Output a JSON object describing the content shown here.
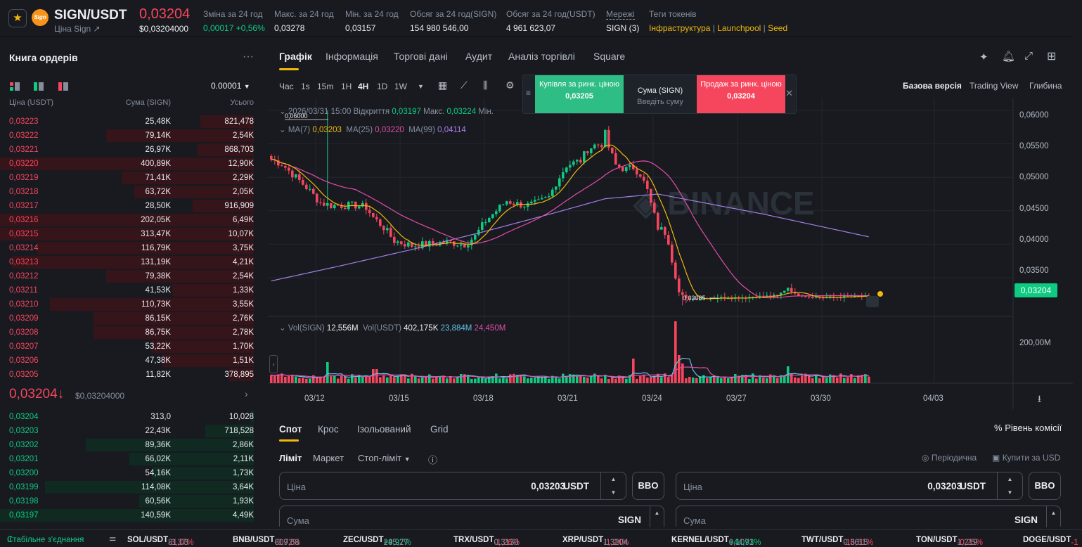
{
  "header": {
    "pair": "SIGN/USDT",
    "coin_badge": "Sign",
    "sub_link": "Ціна Sign ↗",
    "price": "0,03204",
    "price_usd": "$0,03204000",
    "stats": [
      {
        "label": "Зміна за 24 год",
        "value": "0,00017 +0,56%",
        "color": "green"
      },
      {
        "label": "Макс. за 24 год",
        "value": "0,03278",
        "color": ""
      },
      {
        "label": "Мін. за 24 год",
        "value": "0,03157",
        "color": ""
      },
      {
        "label": "Обсяг за 24 год(SIGN)",
        "value": "154 980 546,00",
        "color": ""
      },
      {
        "label": "Обсяг за 24 год(USDT)",
        "value": "4 961 623,07",
        "color": ""
      },
      {
        "label": "Мережі",
        "value": "SIGN (3)",
        "color": ""
      }
    ],
    "tags_label": "Теги токенів",
    "tags": [
      "Інфраструктура",
      "Launchpool",
      "Seed"
    ]
  },
  "orderbook": {
    "title": "Книга ордерів",
    "precision": "0.00001",
    "col_price": "Ціна (USDT)",
    "col_amount": "Сума (SIGN)",
    "col_total": "Усього",
    "asks": [
      {
        "p": "0,03223",
        "a": "25,48K",
        "t": "821,478",
        "d": 0.21
      },
      {
        "p": "0,03222",
        "a": "79,14K",
        "t": "2,54K",
        "d": 0.58
      },
      {
        "p": "0,03221",
        "a": "26,97K",
        "t": "868,703",
        "d": 0.22
      },
      {
        "p": "0,03220",
        "a": "400,89K",
        "t": "12,90K",
        "d": 1.0
      },
      {
        "p": "0,03219",
        "a": "71,41K",
        "t": "2,29K",
        "d": 0.52
      },
      {
        "p": "0,03218",
        "a": "63,72K",
        "t": "2,05K",
        "d": 0.47
      },
      {
        "p": "0,03217",
        "a": "28,50K",
        "t": "916,909",
        "d": 0.24
      },
      {
        "p": "0,03216",
        "a": "202,05K",
        "t": "6,49K",
        "d": 1.0
      },
      {
        "p": "0,03215",
        "a": "313,47K",
        "t": "10,07K",
        "d": 1.0
      },
      {
        "p": "0,03214",
        "a": "116,79K",
        "t": "3,75K",
        "d": 0.85
      },
      {
        "p": "0,03213",
        "a": "131,19K",
        "t": "4,21K",
        "d": 0.95
      },
      {
        "p": "0,03212",
        "a": "79,38K",
        "t": "2,54K",
        "d": 0.58
      },
      {
        "p": "0,03211",
        "a": "41,53K",
        "t": "1,33K",
        "d": 0.32
      },
      {
        "p": "0,03210",
        "a": "110,73K",
        "t": "3,55K",
        "d": 0.8
      },
      {
        "p": "0,03209",
        "a": "86,15K",
        "t": "2,76K",
        "d": 0.63
      },
      {
        "p": "0,03208",
        "a": "86,75K",
        "t": "2,78K",
        "d": 0.63
      },
      {
        "p": "0,03207",
        "a": "53,22K",
        "t": "1,70K",
        "d": 0.4
      },
      {
        "p": "0,03206",
        "a": "47,38K",
        "t": "1,51K",
        "d": 0.36
      },
      {
        "p": "0,03205",
        "a": "11,82K",
        "t": "378,895",
        "d": 0.1
      }
    ],
    "mid_price": "0,03204",
    "mid_arrow": "↓",
    "mid_usd": "$0,03204000",
    "bids": [
      {
        "p": "0,03204",
        "a": "313,0",
        "t": "10,028",
        "d": 0.01
      },
      {
        "p": "0,03203",
        "a": "22,43K",
        "t": "718,528",
        "d": 0.19
      },
      {
        "p": "0,03202",
        "a": "89,36K",
        "t": "2,86K",
        "d": 0.66
      },
      {
        "p": "0,03201",
        "a": "66,02K",
        "t": "2,11K",
        "d": 0.49
      },
      {
        "p": "0,03200",
        "a": "54,16K",
        "t": "1,73K",
        "d": 0.4
      },
      {
        "p": "0,03199",
        "a": "114,08K",
        "t": "3,64K",
        "d": 0.82
      },
      {
        "p": "0,03198",
        "a": "60,56K",
        "t": "1,93K",
        "d": 0.45
      },
      {
        "p": "0,03197",
        "a": "140,59K",
        "t": "4,49K",
        "d": 1.0
      }
    ]
  },
  "chart_tabs": [
    "Графік",
    "Інформація",
    "Торгові дані",
    "Аудит",
    "Аналіз торгівлі",
    "Square"
  ],
  "intervals": [
    "Час",
    "1s",
    "15m",
    "1H",
    "4H",
    "1D",
    "1W"
  ],
  "views": [
    "Базова версія",
    "Trading View",
    "Глибина"
  ],
  "market_popup": {
    "buy_label": "Купівля за ринк. ціною",
    "buy_price": "0,03205",
    "mid_label": "Сума (SIGN)",
    "mid_placeholder": "Введіть суму",
    "sell_label": "Продаж за ринк. ціною",
    "sell_price": "0,03204"
  },
  "legend": {
    "ohlc": "2026/03/31 15:00  Відкриття",
    "open": "0,03197",
    "high_label": "Макс.",
    "high": "0,03224",
    "low_label": "Мін.",
    "ma7_label": "MA(7)",
    "ma7": "0,03203",
    "ma25_label": "MA(25)",
    "ma25": "0,03220",
    "ma99_label": "MA(99)",
    "ma99": "0,04114",
    "vol_sign_label": "Vol(SIGN)",
    "vol_sign": "12,556M",
    "vol_usdt_label": "Vol(USDT)",
    "vol_usdt": "402,175K",
    "vol_ma1": "23,884M",
    "vol_ma2": "24,450M"
  },
  "chart_data": {
    "type": "candlestick",
    "interval": "4H",
    "y_ticks": [
      "0,06000",
      "0,05500",
      "0,05000",
      "0,04500",
      "0,04000",
      "0,03500"
    ],
    "y_values": [
      0.06,
      0.055,
      0.05,
      0.045,
      0.04,
      0.035
    ],
    "ylim": [
      0.0292,
      0.0618
    ],
    "vol_tick": "200,00M",
    "x_ticks": [
      "03/12",
      "03/15",
      "03/18",
      "03/21",
      "03/24",
      "03/27",
      "03/30",
      "04/03"
    ],
    "high_annotation": "0,06000",
    "low_annotation": "0,03085",
    "current_price": "0,03204",
    "close_anchors": [
      [
        0,
        0.0527
      ],
      [
        3,
        0.052
      ],
      [
        6,
        0.0505
      ],
      [
        10,
        0.0485
      ],
      [
        14,
        0.0462
      ],
      [
        17,
        0.0458
      ],
      [
        20,
        0.0458
      ],
      [
        24,
        0.0458
      ],
      [
        27,
        0.0455
      ],
      [
        29,
        0.044
      ],
      [
        32,
        0.0425
      ],
      [
        35,
        0.0405
      ],
      [
        40,
        0.0398
      ],
      [
        45,
        0.04
      ],
      [
        50,
        0.0403
      ],
      [
        55,
        0.04
      ],
      [
        58,
        0.0412
      ],
      [
        61,
        0.0435
      ],
      [
        64,
        0.045
      ],
      [
        67,
        0.0465
      ],
      [
        70,
        0.046
      ],
      [
        73,
        0.0458
      ],
      [
        76,
        0.0462
      ],
      [
        79,
        0.047
      ],
      [
        81,
        0.0492
      ],
      [
        84,
        0.0518
      ],
      [
        88,
        0.0525
      ],
      [
        90,
        0.0542
      ],
      [
        92,
        0.0548
      ],
      [
        94,
        0.055
      ],
      [
        95,
        0.0565
      ],
      [
        96,
        0.0545
      ],
      [
        98,
        0.0518
      ],
      [
        101,
        0.0512
      ],
      [
        103,
        0.0515
      ],
      [
        105,
        0.0505
      ],
      [
        107,
        0.048
      ],
      [
        108,
        0.046
      ],
      [
        110,
        0.0425
      ],
      [
        112,
        0.0418
      ],
      [
        113,
        0.0405
      ],
      [
        115,
        0.035
      ],
      [
        116,
        0.0328
      ],
      [
        118,
        0.0318
      ],
      [
        125,
        0.032
      ],
      [
        133,
        0.032
      ],
      [
        139,
        0.0322
      ],
      [
        144,
        0.0323
      ],
      [
        147,
        0.0335
      ],
      [
        149,
        0.0325
      ],
      [
        155,
        0.032
      ],
      [
        162,
        0.0321
      ],
      [
        168,
        0.0322
      ],
      [
        170,
        0.0321
      ]
    ],
    "ma99_anchors": [
      [
        0,
        0.0345
      ],
      [
        20,
        0.0368
      ],
      [
        40,
        0.0392
      ],
      [
        60,
        0.0418
      ],
      [
        80,
        0.0446
      ],
      [
        95,
        0.0468
      ],
      [
        110,
        0.0475
      ],
      [
        120,
        0.0465
      ],
      [
        140,
        0.0445
      ],
      [
        170,
        0.0411
      ]
    ]
  },
  "trade": {
    "tabs": [
      "Спот",
      "Крос",
      "Ізольований",
      "Grid"
    ],
    "fee": "Рівень комісії",
    "order_types": [
      "Ліміт",
      "Маркет",
      "Стоп-ліміт"
    ],
    "periodic": "Періодична",
    "buy_usd": "Купити за USD",
    "price_label": "Ціна",
    "price_value": "0,03203",
    "price_unit": "USDT",
    "bbo": "BBO",
    "amount_label": "Сума",
    "amount_unit": "SIGN"
  },
  "ticker": {
    "status": "Стабільне з'єднання",
    "items": [
      {
        "sym": "SOL/USDT",
        "chg": "-3,37%",
        "px": "81,03",
        "up": false
      },
      {
        "sym": "BNB/USDT",
        "chg": "-0,72%",
        "px": "609,68",
        "up": false
      },
      {
        "sym": "ZEC/USDT",
        "chg": "+9,97%",
        "px": "245,27",
        "up": true
      },
      {
        "sym": "TRX/USDT",
        "chg": "-1,26%",
        "px": "0,3130",
        "up": false
      },
      {
        "sym": "XRP/USDT",
        "chg": "-1,24%",
        "px": "1,3204",
        "up": false
      },
      {
        "sym": "KERNEL/USDT",
        "chg": "+44,93%",
        "px": "0,1071",
        "up": true
      },
      {
        "sym": "TWT/USDT",
        "chg": "-16,61%",
        "px": "0,3615",
        "up": false
      },
      {
        "sym": "TON/USDT",
        "chg": "-0,25%",
        "px": "1,219",
        "up": false
      },
      {
        "sym": "DOGE/USDT",
        "chg": "-1",
        "px": "",
        "up": false
      }
    ]
  }
}
